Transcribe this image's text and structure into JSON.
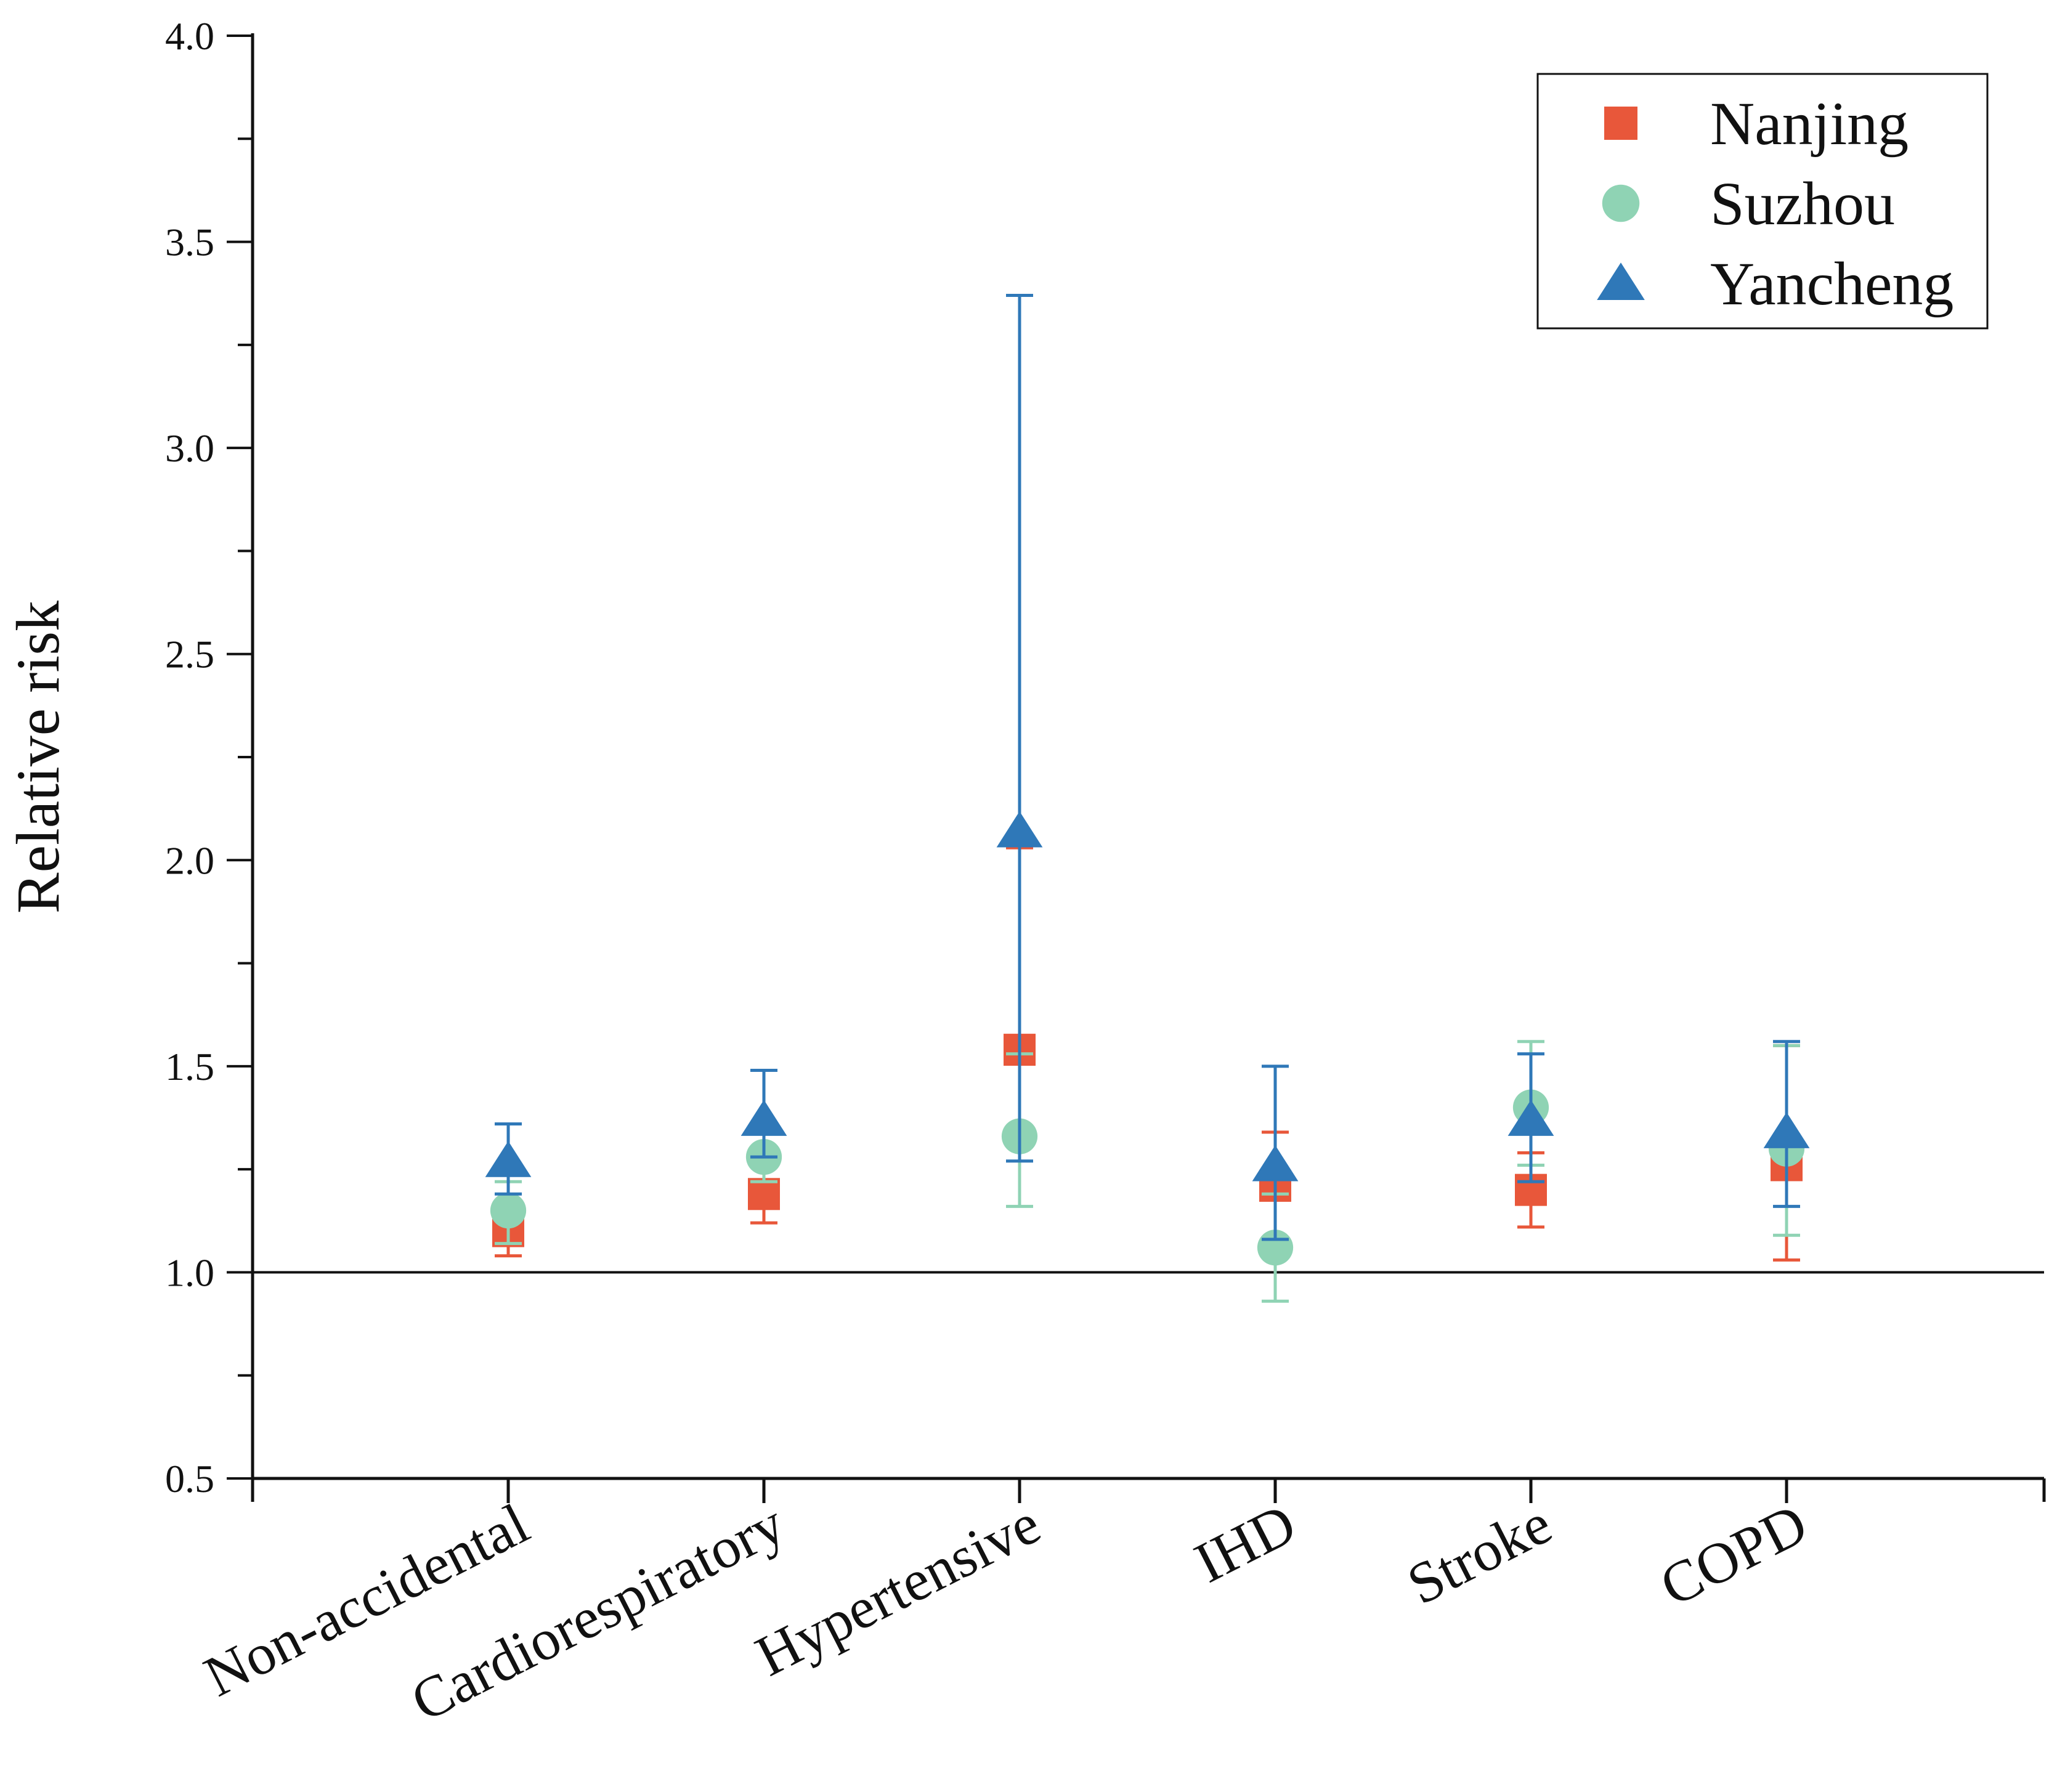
{
  "chart_data": {
    "type": "scatter",
    "title": "",
    "xlabel": "",
    "ylabel": "Relative risk",
    "ylim": [
      0.5,
      4.0
    ],
    "y_major_ticks": [
      "0.5",
      "1.0",
      "1.5",
      "2.0",
      "2.5",
      "3.0",
      "3.5",
      "4.0"
    ],
    "reference_line": 1.0,
    "categories": [
      "Non-accidental",
      "Cardiorespiratory",
      "Hypertensive",
      "IHD",
      "Stroke",
      "COPD"
    ],
    "legend_position": "top-right",
    "series": [
      {
        "name": "Nanjing",
        "marker": "square",
        "color": "#e8573a",
        "values": [
          1.1,
          1.19,
          1.54,
          1.21,
          1.2,
          1.26
        ],
        "lower": [
          1.04,
          1.12,
          1.52,
          1.08,
          1.11,
          1.03
        ],
        "upper": [
          1.15,
          1.26,
          2.03,
          1.34,
          1.29,
          1.55
        ]
      },
      {
        "name": "Suzhou",
        "marker": "circle",
        "color": "#8fd3b4",
        "values": [
          1.15,
          1.28,
          1.33,
          1.06,
          1.4,
          1.3
        ],
        "lower": [
          1.07,
          1.22,
          1.16,
          0.93,
          1.26,
          1.09
        ],
        "upper": [
          1.22,
          1.34,
          1.53,
          1.19,
          1.56,
          1.55
        ]
      },
      {
        "name": "Yancheng",
        "marker": "triangle",
        "color": "#2f78b8",
        "values": [
          1.27,
          1.37,
          2.07,
          1.26,
          1.37,
          1.34
        ],
        "lower": [
          1.19,
          1.28,
          1.27,
          1.08,
          1.22,
          1.16
        ],
        "upper": [
          1.36,
          1.49,
          3.37,
          1.5,
          1.53,
          1.56
        ]
      }
    ]
  }
}
